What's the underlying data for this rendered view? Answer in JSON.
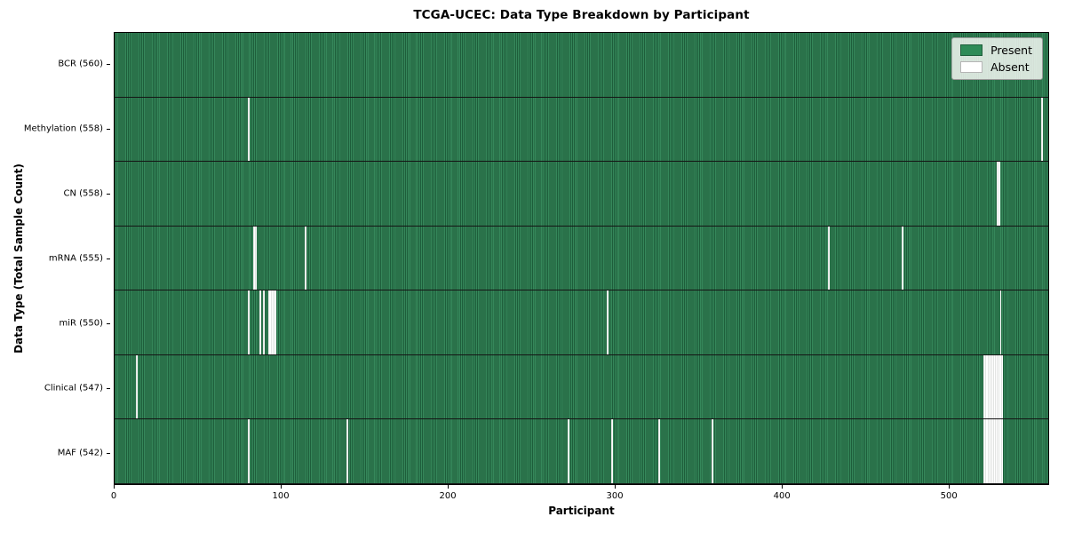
{
  "chart_data": {
    "type": "heatmap",
    "title": "TCGA-UCEC: Data Type Breakdown by Participant",
    "xlabel": "Participant",
    "ylabel": "Data Type (Total Sample Count)",
    "n_participants": 560,
    "x_axis": {
      "min": 0,
      "max": 560,
      "ticks": [
        0,
        100,
        200,
        300,
        400,
        500
      ]
    },
    "legend_labels": [
      "Present",
      "Absent"
    ],
    "legend_position": "upper right",
    "grid": "row-separators",
    "colors": {
      "present": "#2e8b57",
      "present_light": "#35875a",
      "present_edge": "#1e5e3b",
      "absent": "#ffffff",
      "row_border": "#141414"
    },
    "rows": [
      {
        "label": "BCR (560)",
        "data_type": "BCR",
        "present_count": 560,
        "absent_participants": []
      },
      {
        "label": "Methylation (558)",
        "data_type": "Methylation",
        "present_count": 558,
        "absent_participants": [
          80,
          556
        ]
      },
      {
        "label": "CN (558)",
        "data_type": "CN",
        "present_count": 558,
        "absent_participants": [
          529,
          530
        ]
      },
      {
        "label": "mRNA (555)",
        "data_type": "mRNA",
        "present_count": 555,
        "absent_participants": [
          83,
          84,
          114,
          428,
          472
        ]
      },
      {
        "label": "miR (550)",
        "data_type": "miR",
        "present_count": 550,
        "absent_participants": [
          80,
          87,
          89,
          92,
          93,
          94,
          95,
          96,
          295,
          531
        ]
      },
      {
        "label": "Clinical (547)",
        "data_type": "Clinical",
        "present_count": 547,
        "absent_participants": [
          13,
          521,
          522,
          523,
          524,
          525,
          526,
          527,
          528,
          529,
          530,
          531,
          532
        ]
      },
      {
        "label": "MAF (542)",
        "data_type": "MAF",
        "present_count": 542,
        "absent_participants": [
          80,
          139,
          272,
          298,
          326,
          358,
          521,
          522,
          523,
          524,
          525,
          526,
          527,
          528,
          529,
          530,
          531,
          532
        ]
      }
    ]
  }
}
